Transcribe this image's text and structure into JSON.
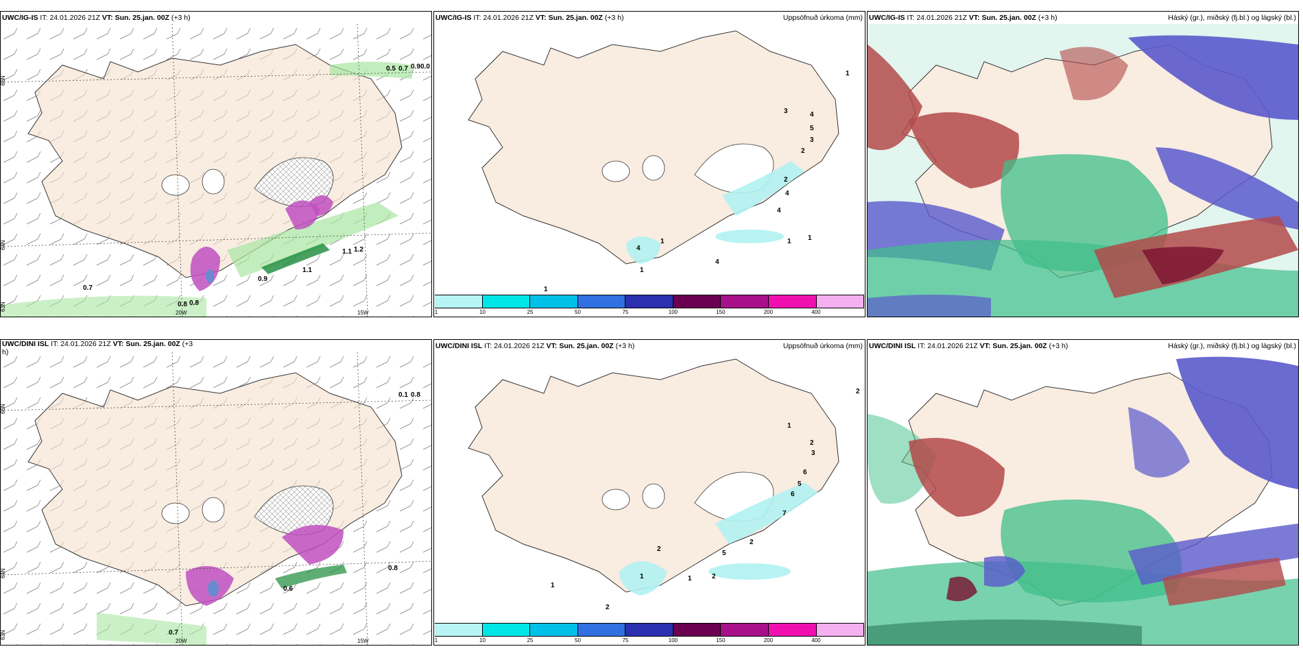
{
  "colors": {
    "land": "#f9ece0",
    "wind_green": "#a8e6a1",
    "wind_dark": "#1a8a3a",
    "precip_light": "#b0f2f2",
    "cloud_red": "#b34a4a",
    "cloud_green": "#3fbf8a",
    "cloud_blue": "#5a5acc",
    "magenta": "#c050c0"
  },
  "rows": [
    {
      "model": "UWC/IG-IS",
      "it_label": "IT:",
      "it_value": "24.01.2026 21Z",
      "vt_label": "VT:",
      "vt_value": "Sun. 25.jan. 00Z",
      "lead": "(+3 h)"
    },
    {
      "model": "UWC/DINI ISL",
      "it_label": "IT:",
      "it_value": "24.01.2026 21Z",
      "vt_label": "VT:",
      "vt_value": "Sun. 25.jan. 00Z",
      "lead": "(+3",
      "lead_wrap": "h)"
    }
  ],
  "precip_title": "Uppsöfnuð úrkoma (mm)",
  "cloud_title": "Háský (gr.), miðský (fj.bl.) og lágský (bl.)",
  "axis": {
    "lat66": "66N",
    "lat64": "64N",
    "lat63": "63N",
    "lon20": "20W",
    "lon15": "15W"
  },
  "colorbar": {
    "colors": [
      "#b8f4f4",
      "#00e6e6",
      "#00c0e8",
      "#3070e0",
      "#2a30b0",
      "#6a0050",
      "#a8108a",
      "#f010b0",
      "#f4b0f0"
    ],
    "ticks": [
      "1",
      "10",
      "25",
      "50",
      "75",
      "100",
      "150",
      "200",
      "400"
    ]
  },
  "wind_labels_top": [
    "0.5",
    "0.7",
    "0.9",
    "0.0",
    "0.7",
    "0.8",
    "0.8",
    "0.9",
    "1.1",
    "1.1",
    "1.2"
  ],
  "wind_labels_bottom": [
    "0.1",
    "0.8",
    "0.8",
    "0.7",
    "0.6"
  ],
  "precip_labels_top": [
    "1",
    "3",
    "4",
    "5",
    "3",
    "2",
    "2",
    "4",
    "4",
    "1",
    "1",
    "4",
    "1",
    "4",
    "1",
    "1"
  ],
  "precip_labels_bottom": [
    "2",
    "1",
    "2",
    "3",
    "6",
    "5",
    "6",
    "7",
    "2",
    "2",
    "5",
    "2",
    "1",
    "2",
    "1",
    "1"
  ]
}
